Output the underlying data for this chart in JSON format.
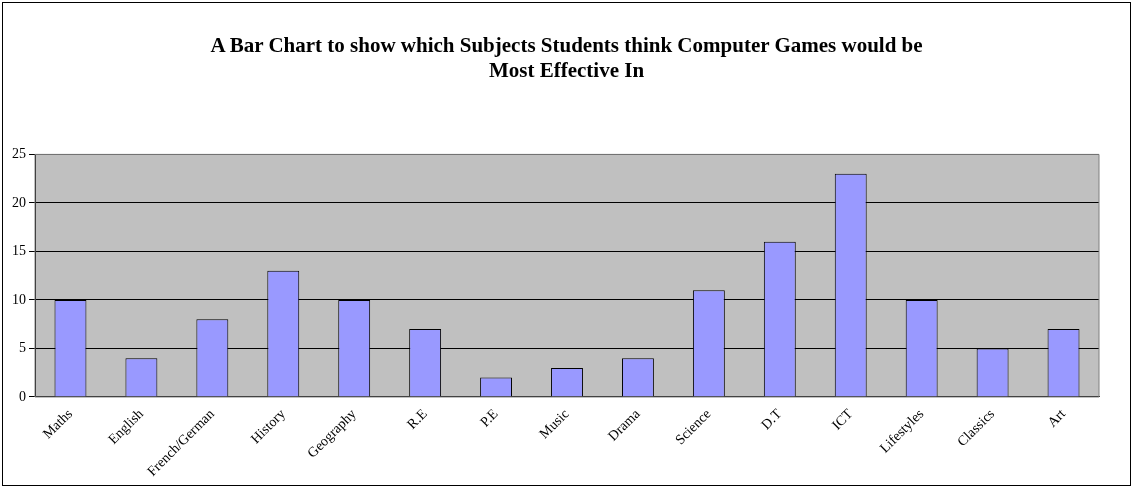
{
  "chart_data": {
    "type": "bar",
    "title": "A Bar Chart to show which Subjects Students think Computer Games would be Most Effective In",
    "categories": [
      "Maths",
      "English",
      "French/German",
      "History",
      "Geography",
      "R.E",
      "P.E",
      "Music",
      "Drama",
      "Science",
      "D.T",
      "ICT",
      "Lifestyles",
      "Classics",
      "Art"
    ],
    "values": [
      10,
      4,
      8,
      13,
      10,
      7,
      2,
      3,
      4,
      11,
      16,
      23,
      10,
      5,
      7
    ],
    "color": "#9999ff",
    "ylim": [
      0,
      25
    ],
    "yticks": [
      0,
      5,
      10,
      15,
      20,
      25
    ],
    "grid": "y",
    "legend": false
  }
}
